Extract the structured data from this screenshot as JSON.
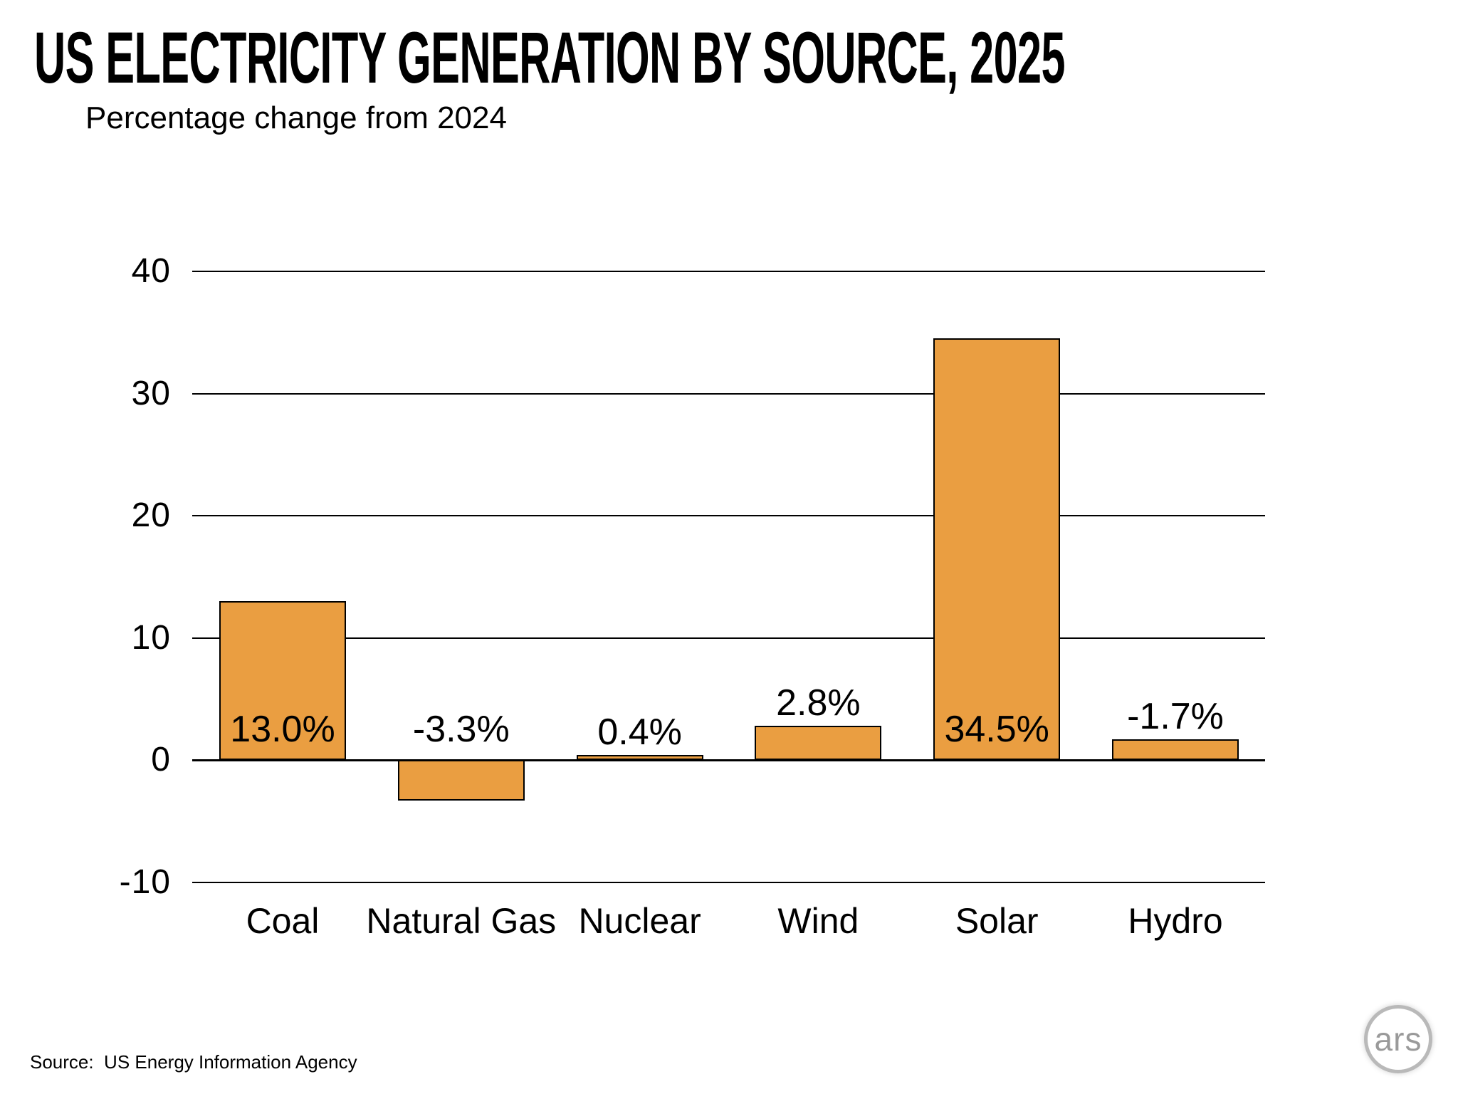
{
  "title": "US ELECTRICITY GENERATION BY SOURCE, 2025",
  "subtitle": "Percentage change from 2024",
  "source_note": "Source:  US Energy Information Agency",
  "logo": {
    "text": "ars"
  },
  "colors": {
    "bar_fill": "#EA9E41",
    "bar_border": "#000000",
    "grid": "#000000",
    "text": "#000000",
    "logo_gray": "#9a9a9a"
  },
  "chart_data": {
    "type": "bar",
    "title": "US ELECTRICITY GENERATION BY SOURCE, 2025",
    "subtitle": "Percentage change from 2024",
    "categories": [
      "Coal",
      "Natural Gas",
      "Nuclear",
      "Wind",
      "Solar",
      "Hydro"
    ],
    "values": [
      13.0,
      -3.3,
      0.4,
      2.8,
      34.5,
      -1.7
    ],
    "data_labels": [
      "13.0%",
      "-3.3%",
      "0.4%",
      "2.8%",
      "34.5%",
      "-1.7%"
    ],
    "bars_drawn_above_axis": [
      true,
      false,
      true,
      true,
      true,
      true
    ],
    "xlabel": "",
    "ylabel": "",
    "ylim": [
      -10,
      40
    ],
    "yticks": [
      40,
      30,
      20,
      10,
      0,
      -10
    ],
    "grid": "horizontal",
    "legend": "none"
  }
}
